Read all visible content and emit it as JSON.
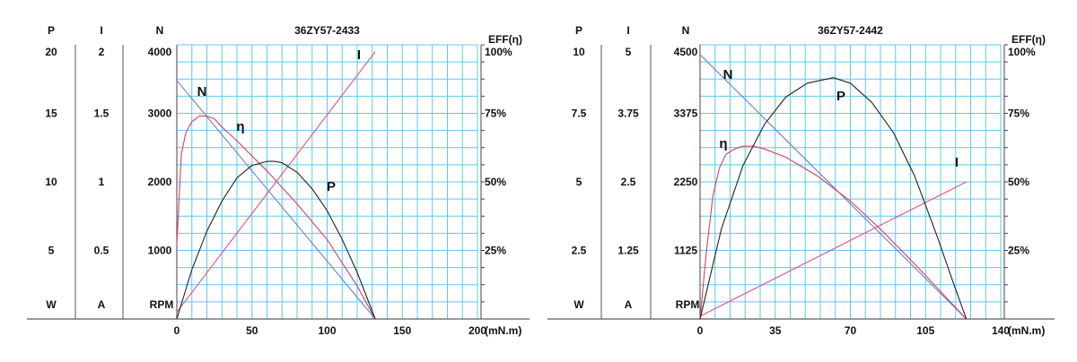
{
  "colors": {
    "grid": "#5ec8f0",
    "torque_speed": "#6a7fd0",
    "current": "#e0508a",
    "efficiency": "#d64060",
    "power": "#222222"
  },
  "chart_data": [
    {
      "type": "line",
      "title": "36ZY57-2433",
      "xlabel": "(mN.m)",
      "x_ticks": [
        "0",
        "50",
        "100",
        "150",
        "200"
      ],
      "xlim": [
        0,
        200
      ],
      "axes": {
        "P": {
          "header": "P",
          "unit": "W",
          "ticks": [
            "5",
            "10",
            "15",
            "20"
          ],
          "ylim": [
            0,
            20
          ]
        },
        "I": {
          "header": "I",
          "unit": "A",
          "ticks": [
            "0.5",
            "1",
            "1.5",
            "2"
          ],
          "ylim": [
            0,
            2
          ]
        },
        "N": {
          "header": "N",
          "unit": "RPM",
          "ticks": [
            "1000",
            "2000",
            "3000",
            "4000"
          ],
          "ylim": [
            0,
            4000
          ]
        },
        "EFF": {
          "header": "EFF(η)",
          "ticks": [
            "25%",
            "50%",
            "75%",
            "100%"
          ],
          "ylim": [
            0,
            100
          ]
        }
      },
      "series": [
        {
          "name": "N",
          "axis": "N",
          "x": [
            0,
            132
          ],
          "values": [
            3480,
            0
          ]
        },
        {
          "name": "I",
          "axis": "I",
          "x": [
            0,
            132
          ],
          "values": [
            0.05,
            1.95
          ]
        },
        {
          "name": "η",
          "axis": "EFF",
          "x": [
            0,
            3,
            6,
            10,
            15,
            20,
            25,
            30,
            40,
            60,
            80,
            100,
            120,
            132
          ],
          "values": [
            27,
            60,
            68,
            72,
            74,
            74,
            73,
            70,
            65,
            54,
            42,
            29,
            12,
            0
          ]
        },
        {
          "name": "P",
          "axis": "P",
          "x": [
            0,
            10,
            20,
            30,
            40,
            50,
            60,
            65,
            70,
            80,
            90,
            100,
            110,
            120,
            132
          ],
          "values": [
            0,
            3.6,
            6.4,
            8.6,
            10.3,
            11.2,
            11.5,
            11.5,
            11.4,
            10.7,
            9.5,
            7.9,
            5.8,
            3.4,
            0
          ]
        }
      ],
      "curve_labels": [
        "N",
        "η",
        "I",
        "P"
      ]
    },
    {
      "type": "line",
      "title": "36ZY57-2442",
      "xlabel": "(mN.m)",
      "x_ticks": [
        "0",
        "35",
        "70",
        "105",
        "140"
      ],
      "xlim": [
        0,
        140
      ],
      "axes": {
        "P": {
          "header": "P",
          "unit": "W",
          "ticks": [
            "2.5",
            "5",
            "7.5",
            "10"
          ],
          "ylim": [
            0,
            10
          ]
        },
        "I": {
          "header": "I",
          "unit": "A",
          "ticks": [
            "1.25",
            "2.5",
            "3.75",
            "5"
          ],
          "ylim": [
            0,
            5
          ]
        },
        "N": {
          "header": "N",
          "unit": "RPM",
          "ticks": [
            "1125",
            "2250",
            "3375",
            "4500"
          ],
          "ylim": [
            0,
            4500
          ]
        },
        "EFF": {
          "header": "EFF(η)",
          "ticks": [
            "25%",
            "50%",
            "75%",
            "100%"
          ],
          "ylim": [
            0,
            100
          ]
        }
      },
      "series": [
        {
          "name": "N",
          "axis": "N",
          "x": [
            0,
            124
          ],
          "values": [
            4340,
            0
          ]
        },
        {
          "name": "I",
          "axis": "I",
          "x": [
            0,
            124
          ],
          "values": [
            0.05,
            2.5
          ]
        },
        {
          "name": "η",
          "axis": "EFF",
          "x": [
            0,
            3,
            6,
            9,
            12,
            16,
            20,
            25,
            30,
            40,
            55,
            70,
            85,
            100,
            112,
            124
          ],
          "values": [
            0,
            25,
            45,
            55,
            60,
            62,
            63,
            63,
            62,
            59,
            52,
            43,
            32,
            20,
            10,
            0
          ]
        },
        {
          "name": "P",
          "axis": "P",
          "x": [
            0,
            10,
            20,
            30,
            40,
            50,
            62,
            70,
            80,
            90,
            100,
            110,
            118,
            124
          ],
          "values": [
            0,
            3.3,
            5.6,
            7.1,
            8.1,
            8.6,
            8.8,
            8.6,
            7.9,
            6.8,
            5.2,
            3.1,
            1.3,
            0
          ]
        }
      ],
      "curve_labels": [
        "N",
        "η",
        "P",
        "I"
      ]
    }
  ]
}
